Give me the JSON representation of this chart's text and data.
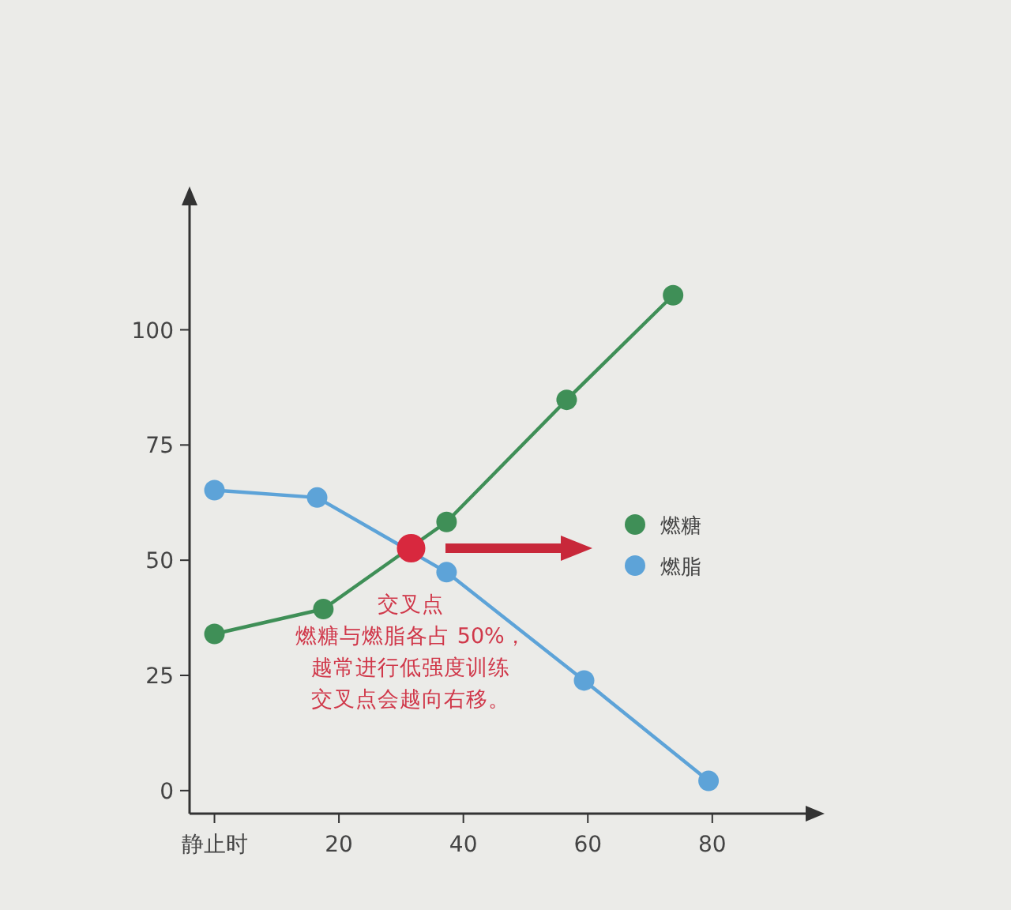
{
  "chart_data": {
    "type": "line",
    "xlim": [
      -4,
      95
    ],
    "ylim": [
      -5,
      127
    ],
    "xticks": [
      {
        "value": 0,
        "label": "静止时"
      },
      20,
      40,
      60,
      80
    ],
    "yticks": [
      0,
      25,
      50,
      75,
      100
    ],
    "marker": "circle",
    "legend": "right",
    "series": [
      {
        "name": "燃糖",
        "color": "#3f8f57",
        "x": [
          0,
          17.5,
          37.3,
          56.6,
          73.7
        ],
        "values": [
          34,
          39.4,
          58.3,
          84.8,
          107.5
        ]
      },
      {
        "name": "燃脂",
        "color": "#5da3d8",
        "x": [
          0,
          16.5,
          37.3,
          59.4,
          79.4
        ],
        "values": [
          65.2,
          63.6,
          47.4,
          23.9,
          2.1
        ]
      },
      {
        "type": "scatter",
        "color": "#d8283e",
        "x": [
          31.6
        ],
        "values": [
          52.6
        ]
      }
    ],
    "annotations": [
      {
        "text": "交叉点",
        "x": 31.6,
        "y": 52.6
      },
      "燃糖与燃脂各占 50%，",
      "越常进行低强度训练",
      "交叉点会越向右移。"
    ]
  }
}
